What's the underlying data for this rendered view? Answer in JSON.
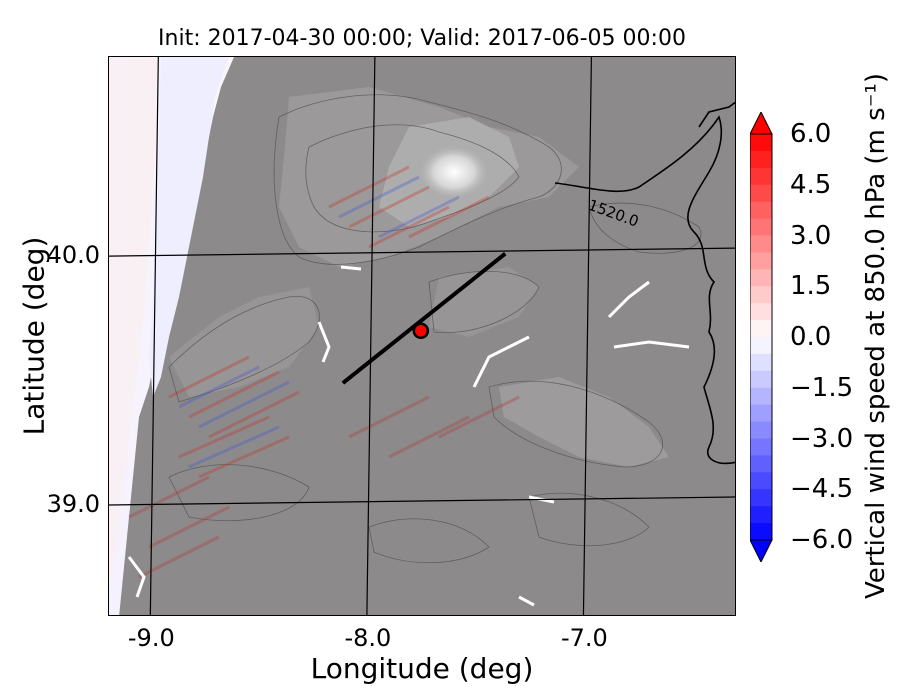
{
  "title": "Init: 2017-04-30 00:00; Valid: 2017-06-05 00:00",
  "x_axis": {
    "label": "Longitude (deg)",
    "ticks": [
      {
        "value": -9.0,
        "label": "-9.0"
      },
      {
        "value": -8.0,
        "label": "-8.0"
      },
      {
        "value": -7.0,
        "label": "-7.0"
      }
    ],
    "range": [
      -9.2,
      -6.3
    ]
  },
  "y_axis": {
    "label": "Latitude (deg)",
    "ticks": [
      {
        "value": 40.0,
        "label": "40.0"
      },
      {
        "value": 39.0,
        "label": "39.0"
      }
    ],
    "range": [
      38.55,
      40.8
    ]
  },
  "contour_label": "1520.0",
  "cross_section_line": {
    "start": [
      -8.12,
      39.49
    ],
    "end": [
      -7.37,
      40.01
    ],
    "color": "#000000"
  },
  "point_marker": {
    "lon": -7.76,
    "lat": 39.7,
    "color": "#ff0000"
  },
  "colorbar": {
    "label": "Vertical wind speed at 850.0 hPa (m s⁻¹)",
    "ticks": [
      "6.0",
      "4.5",
      "3.0",
      "1.5",
      "0.0",
      "−1.5",
      "−3.0",
      "−4.5",
      "−6.0"
    ],
    "min": -6.0,
    "max": 6.0,
    "extend": "both",
    "colormap": "bwr",
    "colors": {
      "max": "#ff0000",
      "zero": "#ffffff",
      "min": "#0000ff"
    }
  },
  "colors": {
    "terrain": "#8c8a8b",
    "sea": "#f2f0ff",
    "grid": "#000000"
  }
}
